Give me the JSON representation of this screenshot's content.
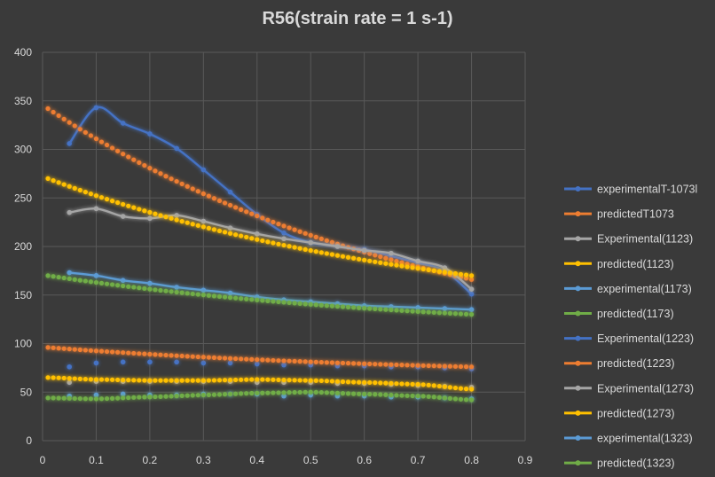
{
  "chart_data": {
    "type": "line",
    "title": "R56(strain rate = 1 s-1)",
    "xlabel": "",
    "ylabel": "",
    "xlim": [
      0,
      0.9
    ],
    "ylim": [
      0,
      400
    ],
    "xticks": [
      0,
      0.1,
      0.2,
      0.3,
      0.4,
      0.5,
      0.6,
      0.7,
      0.8,
      0.9
    ],
    "yticks": [
      0,
      50,
      100,
      150,
      200,
      250,
      300,
      350,
      400
    ],
    "grid": true,
    "legend": "right",
    "series": [
      {
        "name": "experimentalT-1073l",
        "color": "#4472c4",
        "style": "smooth-solid",
        "x": [
          0.05,
          0.1,
          0.15,
          0.2,
          0.25,
          0.3,
          0.35,
          0.4,
          0.45,
          0.5,
          0.55,
          0.6,
          0.65,
          0.7,
          0.75,
          0.8
        ],
        "y": [
          306,
          343,
          327,
          316,
          301,
          279,
          256,
          233,
          214,
          204,
          201,
          197,
          190,
          183,
          175,
          151
        ]
      },
      {
        "name": "predictedT1073",
        "color": "#ed7d31",
        "style": "dots",
        "x": [
          0.01,
          0.8
        ],
        "y": [
          342,
          166
        ],
        "curve": "decay"
      },
      {
        "name": "Experimental(1123)",
        "color": "#a5a5a5",
        "style": "smooth-solid",
        "x": [
          0.05,
          0.1,
          0.15,
          0.2,
          0.25,
          0.3,
          0.35,
          0.4,
          0.45,
          0.5,
          0.55,
          0.6,
          0.65,
          0.7,
          0.75,
          0.8
        ],
        "y": [
          235,
          239,
          231,
          229,
          232,
          226,
          219,
          213,
          208,
          204,
          200,
          196,
          193,
          185,
          178,
          156
        ]
      },
      {
        "name": "predicted(1123)",
        "color": "#ffc000",
        "style": "dots",
        "x": [
          0.01,
          0.8
        ],
        "y": [
          270,
          170
        ],
        "curve": "decay"
      },
      {
        "name": "experimental(1173)",
        "color": "#5b9bd5",
        "style": "smooth-solid",
        "x": [
          0.05,
          0.1,
          0.15,
          0.2,
          0.25,
          0.3,
          0.35,
          0.4,
          0.45,
          0.5,
          0.55,
          0.6,
          0.65,
          0.7,
          0.75,
          0.8
        ],
        "y": [
          173,
          170,
          165,
          162,
          158,
          155,
          152,
          148,
          145,
          143,
          141,
          139,
          138,
          137,
          136,
          135
        ]
      },
      {
        "name": "predicted(1173)",
        "color": "#70ad47",
        "style": "dots",
        "x": [
          0.01,
          0.8
        ],
        "y": [
          170,
          130
        ],
        "curve": "decay"
      },
      {
        "name": "Experimental(1223)",
        "color": "#4472c4",
        "style": "markers",
        "x": [
          0.05,
          0.1,
          0.15,
          0.2,
          0.25,
          0.3,
          0.35,
          0.4,
          0.45,
          0.5,
          0.55,
          0.6,
          0.65,
          0.7,
          0.75,
          0.8
        ],
        "y": [
          76,
          80,
          81,
          81,
          81,
          80,
          80,
          79,
          78,
          78,
          77,
          77,
          76,
          76,
          75,
          74
        ]
      },
      {
        "name": "predicted(1223)",
        "color": "#ed7d31",
        "style": "dots",
        "x": [
          0.01,
          0.8
        ],
        "y": [
          96,
          76
        ],
        "curve": "decay"
      },
      {
        "name": "Experimental(1273)",
        "color": "#a5a5a5",
        "style": "markers",
        "x": [
          0.05,
          0.1,
          0.15,
          0.2,
          0.25,
          0.3,
          0.35,
          0.4,
          0.45,
          0.5,
          0.55,
          0.6,
          0.65,
          0.7,
          0.75,
          0.8
        ],
        "y": [
          60,
          61,
          61,
          61,
          61,
          61,
          61,
          60,
          60,
          60,
          59,
          59,
          58,
          57,
          56,
          55
        ]
      },
      {
        "name": "predicted(1273)",
        "color": "#ffc000",
        "style": "dots",
        "x": [
          0.01,
          0.1,
          0.2,
          0.3,
          0.4,
          0.5,
          0.6,
          0.7,
          0.8
        ],
        "y": [
          65,
          63,
          62,
          62,
          63,
          62,
          60,
          58,
          53
        ]
      },
      {
        "name": "experimental(1323)",
        "color": "#5b9bd5",
        "style": "markers",
        "x": [
          0.05,
          0.1,
          0.15,
          0.2,
          0.25,
          0.3,
          0.35,
          0.4,
          0.45,
          0.5,
          0.55,
          0.6,
          0.65,
          0.7,
          0.75,
          0.8
        ],
        "y": [
          46,
          47,
          48,
          47,
          47,
          48,
          48,
          48,
          46,
          47,
          46,
          46,
          45,
          45,
          44,
          43
        ]
      },
      {
        "name": "predicted(1323)",
        "color": "#70ad47",
        "style": "dots",
        "x": [
          0.01,
          0.1,
          0.2,
          0.3,
          0.4,
          0.5,
          0.6,
          0.7,
          0.8
        ],
        "y": [
          44,
          43,
          45,
          47,
          49,
          50,
          48,
          46,
          42
        ]
      }
    ]
  }
}
